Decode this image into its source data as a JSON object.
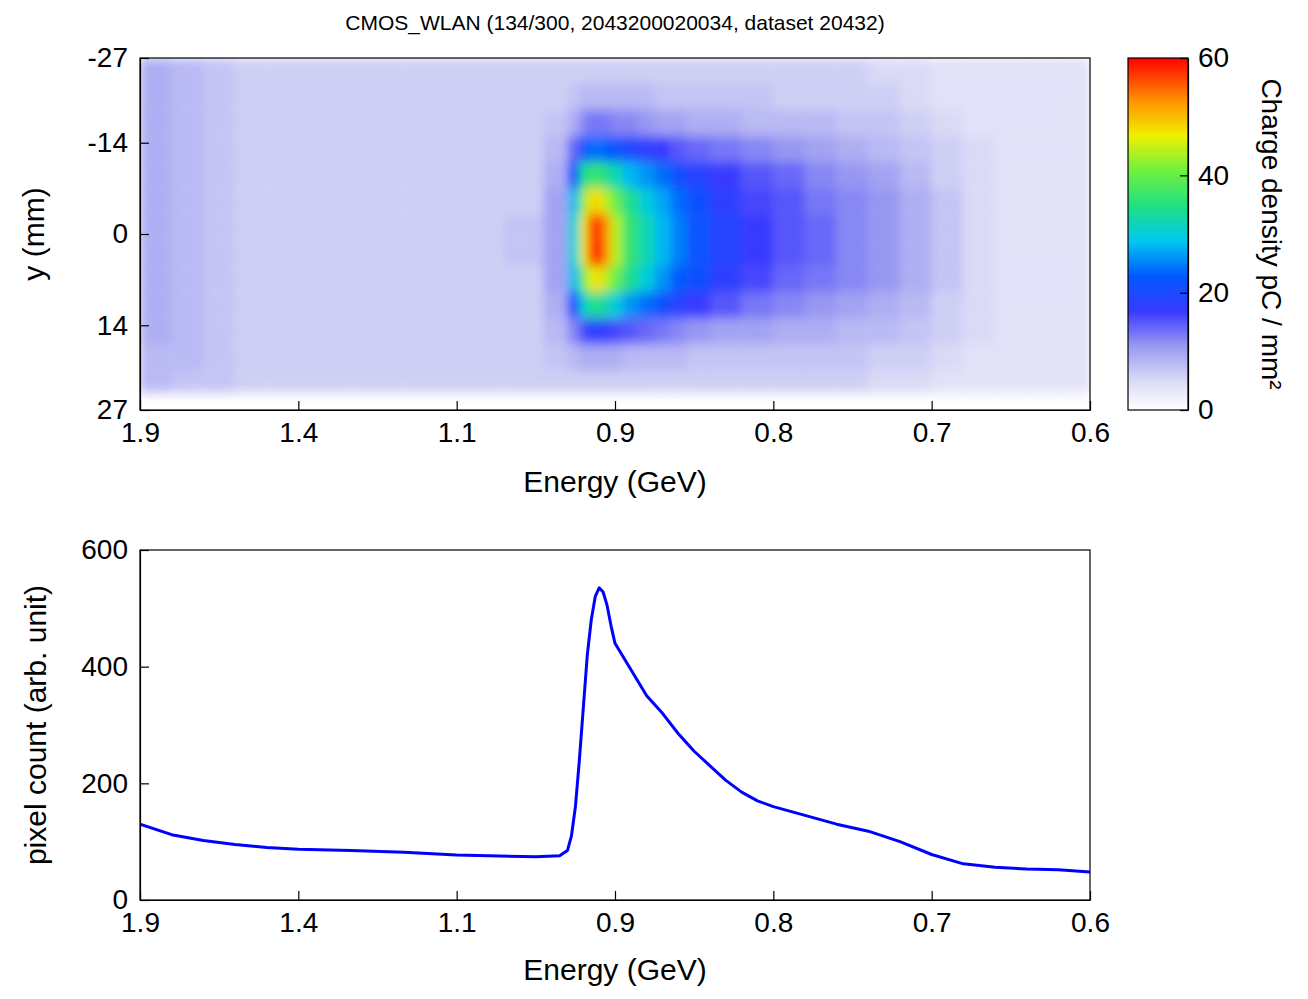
{
  "chart_data": [
    {
      "type": "heatmap",
      "title": "CMOS_WLAN (134/300, 2043200020034, dataset 20432)",
      "x_label": "Energy (GeV)",
      "y_label": "y (mm)",
      "xlim": [
        1.9,
        0.6
      ],
      "xticks": [
        1.9,
        1.4,
        1.1,
        0.9,
        0.8,
        0.7,
        0.6
      ],
      "ylim": [
        27,
        -27
      ],
      "yticks": [
        -27,
        -14,
        0,
        14,
        27
      ],
      "x": [
        1.85,
        1.75,
        1.65,
        1.55,
        1.45,
        1.35,
        1.25,
        1.15,
        1.07,
        1.01,
        0.97,
        0.95,
        0.94,
        0.93,
        0.92,
        0.91,
        0.9,
        0.89,
        0.88,
        0.87,
        0.86,
        0.85,
        0.83,
        0.81,
        0.79,
        0.77,
        0.75,
        0.73,
        0.71,
        0.69,
        0.67,
        0.65,
        0.63,
        0.61
      ],
      "y": [
        -25,
        -21,
        -17,
        -13,
        -9,
        -5,
        -1,
        3,
        7,
        11,
        15,
        19,
        23,
        26
      ],
      "z": [
        [
          9,
          8,
          7,
          6,
          6,
          6,
          6,
          6,
          6,
          6,
          6,
          6,
          6,
          6,
          6,
          6,
          6,
          6,
          6,
          6,
          6,
          6,
          6,
          6,
          6,
          6,
          6,
          5,
          5,
          4,
          4,
          4,
          4,
          4
        ],
        [
          9,
          8,
          7,
          6,
          6,
          6,
          6,
          6,
          6,
          6,
          6,
          7,
          8,
          8,
          8,
          8,
          8,
          8,
          8,
          7,
          7,
          7,
          7,
          7,
          6,
          6,
          6,
          6,
          5,
          4,
          4,
          4,
          4,
          4
        ],
        [
          9,
          8,
          7,
          6,
          6,
          6,
          6,
          6,
          6,
          6,
          7,
          9,
          12,
          13,
          13,
          13,
          12,
          12,
          11,
          10,
          10,
          9,
          9,
          8,
          8,
          8,
          7,
          7,
          6,
          5,
          4,
          4,
          4,
          4
        ],
        [
          9,
          8,
          7,
          6,
          6,
          6,
          6,
          6,
          6,
          6,
          8,
          14,
          22,
          24,
          24,
          23,
          22,
          20,
          18,
          17,
          15,
          14,
          13,
          12,
          11,
          10,
          9,
          8,
          7,
          6,
          5,
          4,
          4,
          4
        ],
        [
          9,
          8,
          7,
          6,
          6,
          6,
          6,
          6,
          6,
          6,
          9,
          22,
          34,
          36,
          36,
          34,
          32,
          28,
          26,
          24,
          21,
          19,
          17,
          15,
          14,
          12,
          11,
          10,
          8,
          6,
          5,
          4,
          4,
          4
        ],
        [
          9,
          8,
          7,
          6,
          6,
          6,
          6,
          6,
          6,
          6,
          10,
          28,
          42,
          48,
          48,
          44,
          40,
          34,
          30,
          27,
          24,
          21,
          18,
          16,
          15,
          13,
          12,
          11,
          9,
          7,
          5,
          4,
          4,
          4
        ],
        [
          9,
          8,
          7,
          6,
          6,
          6,
          6,
          6,
          6,
          7,
          10,
          30,
          46,
          56,
          58,
          52,
          44,
          36,
          32,
          28,
          25,
          22,
          19,
          17,
          15,
          14,
          12,
          11,
          9,
          7,
          5,
          4,
          4,
          4
        ],
        [
          9,
          8,
          7,
          6,
          6,
          6,
          6,
          6,
          6,
          7,
          10,
          30,
          46,
          56,
          60,
          52,
          44,
          36,
          32,
          28,
          25,
          22,
          19,
          17,
          15,
          14,
          12,
          11,
          9,
          7,
          5,
          4,
          4,
          4
        ],
        [
          9,
          8,
          7,
          6,
          6,
          6,
          6,
          6,
          6,
          6,
          10,
          28,
          40,
          46,
          48,
          44,
          40,
          34,
          30,
          26,
          23,
          21,
          18,
          16,
          14,
          13,
          12,
          11,
          9,
          7,
          5,
          4,
          4,
          4
        ],
        [
          9,
          8,
          7,
          6,
          6,
          6,
          6,
          6,
          6,
          6,
          9,
          20,
          30,
          34,
          34,
          32,
          30,
          26,
          24,
          21,
          19,
          17,
          15,
          13,
          12,
          11,
          10,
          9,
          8,
          6,
          5,
          4,
          4,
          4
        ],
        [
          9,
          8,
          7,
          6,
          6,
          6,
          6,
          6,
          6,
          6,
          8,
          12,
          16,
          18,
          18,
          17,
          16,
          15,
          14,
          13,
          12,
          11,
          10,
          10,
          9,
          9,
          8,
          8,
          7,
          6,
          5,
          4,
          4,
          4
        ],
        [
          8,
          8,
          7,
          6,
          6,
          6,
          6,
          6,
          6,
          6,
          7,
          8,
          9,
          9,
          9,
          9,
          9,
          8,
          8,
          8,
          8,
          7,
          7,
          7,
          7,
          7,
          7,
          6,
          6,
          5,
          4,
          4,
          4,
          4
        ],
        [
          8,
          7,
          7,
          6,
          6,
          6,
          6,
          6,
          6,
          6,
          6,
          6,
          6,
          6,
          6,
          6,
          6,
          6,
          6,
          6,
          6,
          6,
          6,
          6,
          6,
          6,
          6,
          5,
          5,
          4,
          4,
          4,
          4,
          4
        ],
        [
          0,
          0,
          0,
          0,
          0,
          0,
          0,
          0,
          0,
          0,
          0,
          0,
          0,
          0,
          0,
          0,
          0,
          0,
          0,
          0,
          0,
          0,
          0,
          0,
          0,
          0,
          0,
          0,
          0,
          0,
          0,
          0,
          0,
          0
        ]
      ],
      "colorbar_range": [
        0,
        60
      ],
      "colorbar_ticks": [
        0,
        20,
        40,
        60
      ],
      "colorbar_label": "Charge density pC / mm²"
    },
    {
      "type": "line",
      "x_label": "Energy (GeV)",
      "y_label": "pixel count (arb. unit)",
      "xlim": [
        1.9,
        0.6
      ],
      "xticks": [
        1.9,
        1.4,
        1.1,
        0.9,
        0.8,
        0.7,
        0.6
      ],
      "ylim": [
        0,
        600
      ],
      "yticks": [
        0,
        200,
        400,
        600
      ],
      "color": "#0000ff",
      "x": [
        1.9,
        1.8,
        1.7,
        1.6,
        1.5,
        1.4,
        1.3,
        1.2,
        1.1,
        1.0,
        0.97,
        0.96,
        0.955,
        0.95,
        0.945,
        0.94,
        0.935,
        0.93,
        0.925,
        0.92,
        0.915,
        0.91,
        0.905,
        0.9,
        0.89,
        0.88,
        0.87,
        0.86,
        0.85,
        0.84,
        0.83,
        0.82,
        0.81,
        0.8,
        0.78,
        0.76,
        0.74,
        0.72,
        0.7,
        0.68,
        0.66,
        0.64,
        0.62,
        0.6
      ],
      "values": [
        130,
        112,
        102,
        95,
        90,
        87,
        85,
        82,
        77,
        74,
        76,
        85,
        110,
        160,
        240,
        330,
        420,
        480,
        520,
        535,
        528,
        505,
        470,
        440,
        395,
        350,
        320,
        285,
        255,
        230,
        205,
        185,
        170,
        160,
        145,
        130,
        118,
        100,
        78,
        62,
        56,
        53,
        52,
        48
      ]
    }
  ]
}
